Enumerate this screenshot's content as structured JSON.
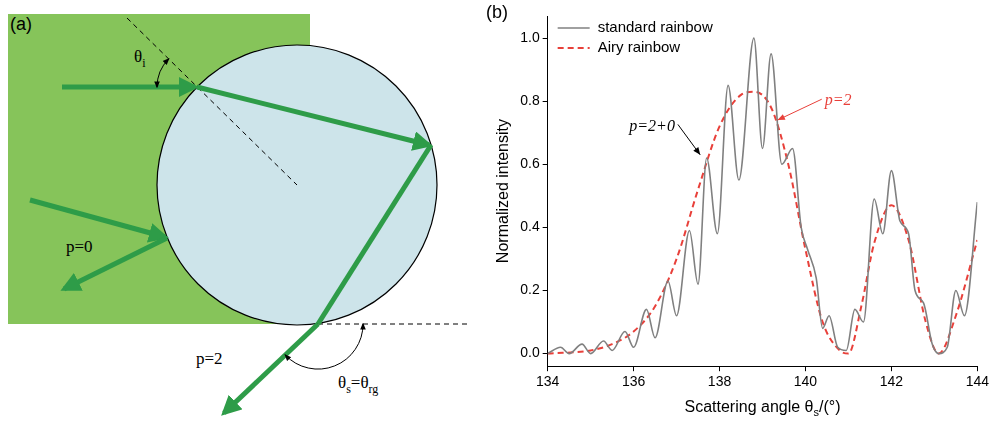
{
  "diagram": {
    "panel_letter": "(a)",
    "incidence_angle": [
      {
        "text": "θ"
      },
      {
        "text": "i",
        "sub": true
      }
    ],
    "ray_p0": "p=0",
    "ray_p2": "p=2",
    "scattering_angle": [
      {
        "text": "θ"
      },
      {
        "text": "s",
        "sub": true
      },
      {
        "text": "=θ"
      },
      {
        "text": "rg",
        "sub": true
      }
    ]
  },
  "chart_data": {
    "type": "line",
    "panel_letter": "(b)",
    "x_label": [
      {
        "text": "Scattering angle θ"
      },
      {
        "text": "s",
        "sub": true
      },
      {
        "text": "/(°)"
      }
    ],
    "y_label": "Normalized intensity",
    "xlim": [
      134,
      144
    ],
    "xticks": [
      134,
      136,
      138,
      140,
      142,
      144
    ],
    "ylim": [
      -0.04,
      1.07
    ],
    "yticks": [
      {
        "value": 0,
        "label": "0.0"
      },
      0.2,
      0.4,
      0.6,
      0.8,
      {
        "value": 1,
        "label": "1.0"
      }
    ],
    "grid": false,
    "legend": "upper left",
    "series": [
      {
        "name": "standard rainbow",
        "color": "#808080",
        "line_style": "solid",
        "x": [
          134.0,
          134.3,
          134.5,
          134.8,
          135.0,
          135.3,
          135.5,
          135.8,
          136.0,
          136.3,
          136.5,
          136.8,
          137.0,
          137.3,
          137.5,
          137.7,
          137.95,
          138.2,
          138.45,
          138.8,
          139.0,
          139.2,
          139.45,
          139.7,
          139.9,
          140.05,
          140.25,
          140.4,
          140.55,
          140.75,
          140.95,
          141.15,
          141.35,
          141.6,
          141.8,
          142.0,
          142.2,
          142.4,
          142.55,
          142.75,
          142.95,
          143.1,
          143.3,
          143.5,
          143.7,
          144.0
        ],
        "values": [
          0.0,
          0.02,
          0.0,
          0.03,
          0.0,
          0.04,
          0.01,
          0.07,
          0.02,
          0.14,
          0.05,
          0.23,
          0.12,
          0.39,
          0.22,
          0.62,
          0.38,
          0.85,
          0.55,
          1.0,
          0.65,
          0.95,
          0.6,
          0.65,
          0.4,
          0.33,
          0.24,
          0.08,
          0.12,
          0.02,
          0.01,
          0.14,
          0.1,
          0.49,
          0.38,
          0.58,
          0.42,
          0.38,
          0.2,
          0.16,
          0.03,
          0.0,
          0.02,
          0.2,
          0.12,
          0.48
        ]
      },
      {
        "name": "Airy rainbow",
        "color": "#e8403a",
        "line_style": "dashed",
        "x": [
          134.0,
          135.0,
          135.5,
          136.0,
          136.5,
          137.0,
          137.5,
          138.0,
          138.5,
          138.8,
          139.2,
          139.6,
          140.0,
          140.4,
          140.8,
          141.0,
          141.3,
          141.6,
          142.0,
          142.4,
          142.8,
          143.1,
          143.5,
          144.0
        ],
        "values": [
          0.0,
          0.01,
          0.03,
          0.07,
          0.15,
          0.3,
          0.52,
          0.72,
          0.82,
          0.83,
          0.78,
          0.6,
          0.33,
          0.1,
          0.01,
          0.0,
          0.15,
          0.35,
          0.47,
          0.36,
          0.1,
          0.0,
          0.12,
          0.36
        ]
      }
    ],
    "annotations": [
      {
        "text": "p=2+0",
        "color": "#000000",
        "x": 135.9,
        "y": 0.72,
        "arrow_to": [
          137.55,
          0.63
        ]
      },
      {
        "text": "p=2",
        "color": "#e8403a",
        "x": 140.45,
        "y": 0.8,
        "arrow_to": [
          139.35,
          0.74
        ]
      }
    ]
  }
}
